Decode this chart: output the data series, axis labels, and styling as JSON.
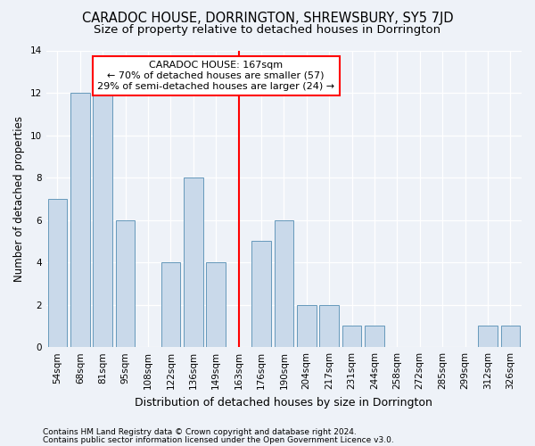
{
  "title": "CARADOC HOUSE, DORRINGTON, SHREWSBURY, SY5 7JD",
  "subtitle": "Size of property relative to detached houses in Dorrington",
  "xlabel": "Distribution of detached houses by size in Dorrington",
  "ylabel": "Number of detached properties",
  "bar_labels": [
    "54sqm",
    "68sqm",
    "81sqm",
    "95sqm",
    "108sqm",
    "122sqm",
    "136sqm",
    "149sqm",
    "163sqm",
    "176sqm",
    "190sqm",
    "204sqm",
    "217sqm",
    "231sqm",
    "244sqm",
    "258sqm",
    "272sqm",
    "285sqm",
    "299sqm",
    "312sqm",
    "326sqm"
  ],
  "bar_values": [
    7,
    12,
    12,
    6,
    0,
    4,
    8,
    4,
    0,
    5,
    6,
    2,
    2,
    1,
    1,
    0,
    0,
    0,
    0,
    1,
    1
  ],
  "bar_color": "#c9d9ea",
  "bar_edgecolor": "#6699bb",
  "red_line_index": 8,
  "ylim": [
    0,
    14
  ],
  "yticks": [
    0,
    2,
    4,
    6,
    8,
    10,
    12,
    14
  ],
  "annotation_title": "CARADOC HOUSE: 167sqm",
  "annotation_line1": "← 70% of detached houses are smaller (57)",
  "annotation_line2": "29% of semi-detached houses are larger (24) →",
  "footer1": "Contains HM Land Registry data © Crown copyright and database right 2024.",
  "footer2": "Contains public sector information licensed under the Open Government Licence v3.0.",
  "background_color": "#eef2f8",
  "plot_bg_color": "#eef2f8",
  "title_fontsize": 10.5,
  "subtitle_fontsize": 9.5,
  "xlabel_fontsize": 9,
  "ylabel_fontsize": 8.5,
  "tick_fontsize": 7.5,
  "ann_fontsize": 8,
  "footer_fontsize": 6.5
}
